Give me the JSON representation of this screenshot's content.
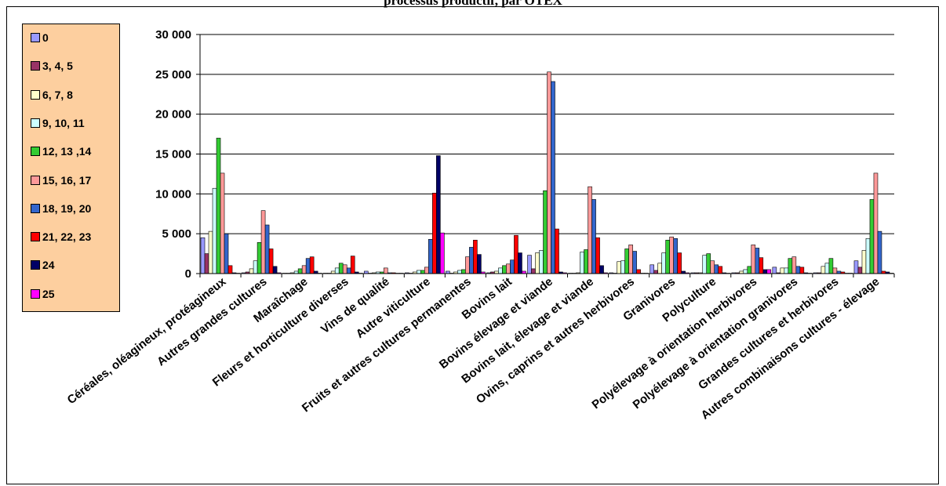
{
  "title": "processus productif, par OTEX",
  "colors": {
    "axis": "#000000",
    "grid": "#000000",
    "legend_bg": "#fdcf9f"
  },
  "chart_data": {
    "type": "bar",
    "title": "processus productif, par OTEX",
    "xlabel": "",
    "ylabel": "",
    "ylim": [
      0,
      30000
    ],
    "yticks": [
      0,
      5000,
      10000,
      15000,
      20000,
      25000,
      30000
    ],
    "ytick_labels": [
      "0",
      "5 000",
      "10 000",
      "15 000",
      "20 000",
      "25 000",
      "30 000"
    ],
    "grid": true,
    "legend_position": "left",
    "categories": [
      "Céréales, oléagineux, protéagineux",
      "Autres grandes cultures",
      "Maraîchage",
      "Fleurs et horticulture diverses",
      "Vins de qualité",
      "Autre viticulture",
      "Fruits et autres cultures permanentes",
      "Bovins lait",
      "Bovins élevage et viande",
      "Bovins lait, élevage et viande",
      "Ovins, caprins et autres herbivores",
      "Granivores",
      "Polyculture",
      "Polyélevage à orientation herbivores",
      "Polyélevage à orientation granivores",
      "Grandes cultures et herbivores",
      "Autres combinaisons cultures - élevage"
    ],
    "series": [
      {
        "name": "0",
        "color": "#9999ff",
        "values": [
          4500,
          100,
          50,
          50,
          300,
          100,
          300,
          100,
          2300,
          50,
          100,
          1100,
          100,
          100,
          800,
          100,
          1600
        ]
      },
      {
        "name": "3, 4, 5",
        "color": "#993366",
        "values": [
          2500,
          200,
          50,
          50,
          50,
          50,
          50,
          200,
          600,
          50,
          50,
          400,
          100,
          100,
          100,
          100,
          800
        ]
      },
      {
        "name": "6, 7, 8",
        "color": "#ffffcc",
        "values": [
          5300,
          600,
          100,
          300,
          100,
          200,
          200,
          300,
          2600,
          100,
          1500,
          1300,
          100,
          300,
          700,
          900,
          2900
        ]
      },
      {
        "name": "9, 10, 11",
        "color": "#ccffff",
        "values": [
          10700,
          1600,
          300,
          700,
          200,
          400,
          400,
          700,
          2900,
          2700,
          1600,
          2600,
          2300,
          500,
          700,
          1300,
          4400
        ]
      },
      {
        "name": "12, 13 ,14",
        "color": "#33cc33",
        "values": [
          17000,
          3900,
          600,
          1300,
          200,
          400,
          500,
          1000,
          10400,
          3000,
          3100,
          4200,
          2500,
          900,
          1900,
          1900,
          9300
        ]
      },
      {
        "name": "15, 16, 17",
        "color": "#ff9999",
        "values": [
          12600,
          7900,
          1000,
          1100,
          700,
          800,
          2100,
          1200,
          25300,
          10900,
          3600,
          4600,
          1600,
          3600,
          2100,
          700,
          12600
        ]
      },
      {
        "name": "18, 19, 20",
        "color": "#3366cc",
        "values": [
          5000,
          6100,
          1900,
          700,
          100,
          4300,
          3300,
          1700,
          24100,
          9300,
          2800,
          4400,
          1100,
          3200,
          900,
          300,
          5300
        ]
      },
      {
        "name": "21, 22, 23",
        "color": "#ff0000",
        "values": [
          1000,
          3100,
          2100,
          2200,
          100,
          10100,
          4200,
          4800,
          5600,
          4500,
          500,
          2600,
          900,
          2000,
          800,
          200,
          300
        ]
      },
      {
        "name": "24",
        "color": "#000066",
        "values": [
          100,
          900,
          300,
          200,
          50,
          14800,
          2400,
          2600,
          200,
          1000,
          50,
          300,
          100,
          500,
          100,
          50,
          200
        ]
      },
      {
        "name": "25",
        "color": "#ff00ff",
        "values": [
          50,
          100,
          50,
          50,
          50,
          5100,
          200,
          300,
          100,
          100,
          50,
          100,
          50,
          500,
          50,
          50,
          50
        ]
      }
    ]
  }
}
